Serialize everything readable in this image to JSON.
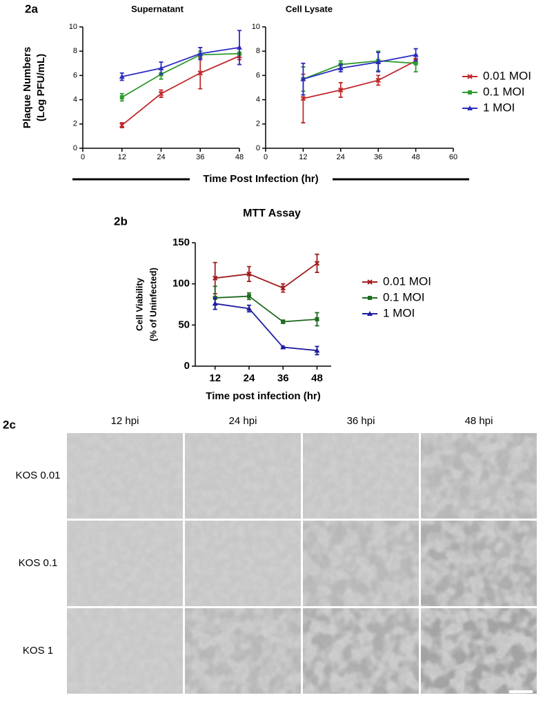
{
  "panels": {
    "a": "2a",
    "b": "2b",
    "c": "2c"
  },
  "shared_xlabel": "Time Post Infection (hr)",
  "chart_data": [
    {
      "type": "line",
      "title": "Supernatant",
      "ylabel": [
        "Plaque Numbers",
        "(Log PFU/mL)"
      ],
      "xlim": [
        0,
        48
      ],
      "xticks": [
        0,
        12,
        24,
        36,
        48
      ],
      "ylim": [
        0,
        10
      ],
      "yticks": [
        0,
        2,
        4,
        6,
        8,
        10
      ],
      "legend": "right",
      "series": [
        {
          "name": "0.01 MOI",
          "color": "#c0282a",
          "marker": "x",
          "x": [
            12,
            24,
            36,
            48
          ],
          "values": [
            1.9,
            4.5,
            6.2,
            7.6
          ],
          "errors": [
            0.2,
            0.3,
            1.3,
            0.3
          ]
        },
        {
          "name": "0.1 MOI",
          "color": "#2e9a2e",
          "marker": "square",
          "x": [
            12,
            24,
            36,
            48
          ],
          "values": [
            4.2,
            6.1,
            7.7,
            7.8
          ],
          "errors": [
            0.3,
            0.4,
            0.3,
            0.1
          ]
        },
        {
          "name": "1 MOI",
          "color": "#2b2bc0",
          "marker": "triangle",
          "x": [
            12,
            24,
            36,
            48
          ],
          "values": [
            5.9,
            6.6,
            7.8,
            8.3
          ],
          "errors": [
            0.3,
            0.5,
            0.5,
            1.4
          ]
        }
      ]
    },
    {
      "type": "line",
      "title": "Cell Lysate",
      "xlim": [
        0,
        60
      ],
      "xticks": [
        0,
        12,
        24,
        36,
        48,
        60
      ],
      "ylim": [
        0,
        10
      ],
      "yticks": [
        0,
        2,
        4,
        6,
        8,
        10
      ],
      "series": [
        {
          "color": "#c0282a",
          "marker": "x",
          "x": [
            12,
            24,
            36,
            48
          ],
          "values": [
            4.1,
            4.8,
            5.6,
            7.2
          ],
          "errors": [
            2.0,
            0.6,
            0.4,
            0.2
          ]
        },
        {
          "color": "#2e9a2e",
          "marker": "square",
          "x": [
            12,
            24,
            36,
            48
          ],
          "values": [
            5.7,
            6.9,
            7.2,
            7.0
          ],
          "errors": [
            1.0,
            0.3,
            0.8,
            0.7
          ]
        },
        {
          "color": "#2b2bc0",
          "marker": "triangle",
          "x": [
            12,
            24,
            36,
            48
          ],
          "values": [
            5.7,
            6.6,
            7.1,
            7.7
          ],
          "errors": [
            1.3,
            0.3,
            0.8,
            0.5
          ]
        }
      ]
    },
    {
      "type": "line",
      "title": "MTT  Assay",
      "xlabel": "Time post infection (hr)",
      "ylabel": [
        "Cell Viability",
        "(% of Uninfected)"
      ],
      "xlim": [
        5,
        53
      ],
      "xticks": [
        12,
        24,
        36,
        48
      ],
      "ylim": [
        0,
        150
      ],
      "yticks": [
        0,
        50,
        100,
        150
      ],
      "legend": "right",
      "series": [
        {
          "name": "0.01 MOI",
          "color": "#a01c1c",
          "marker": "x",
          "x": [
            12,
            24,
            36,
            48
          ],
          "values": [
            107,
            112,
            95,
            125
          ],
          "errors": [
            19,
            9,
            5,
            11
          ]
        },
        {
          "name": "0.1 MOI",
          "color": "#1e6b1e",
          "marker": "square",
          "x": [
            12,
            24,
            36,
            48
          ],
          "values": [
            83,
            85,
            54,
            57
          ],
          "errors": [
            14,
            4,
            2,
            8
          ]
        },
        {
          "name": "1 MOI",
          "color": "#1c1c9e",
          "marker": "triangle",
          "x": [
            12,
            24,
            36,
            48
          ],
          "values": [
            76,
            70,
            23,
            19
          ],
          "errors": [
            7,
            4,
            1,
            5
          ]
        }
      ]
    }
  ],
  "micrographs": {
    "columns": [
      "12 hpi",
      "24 hpi",
      "36 hpi",
      "48 hpi"
    ],
    "rows": [
      "KOS 0.01",
      "KOS 0.1",
      "KOS 1"
    ]
  }
}
